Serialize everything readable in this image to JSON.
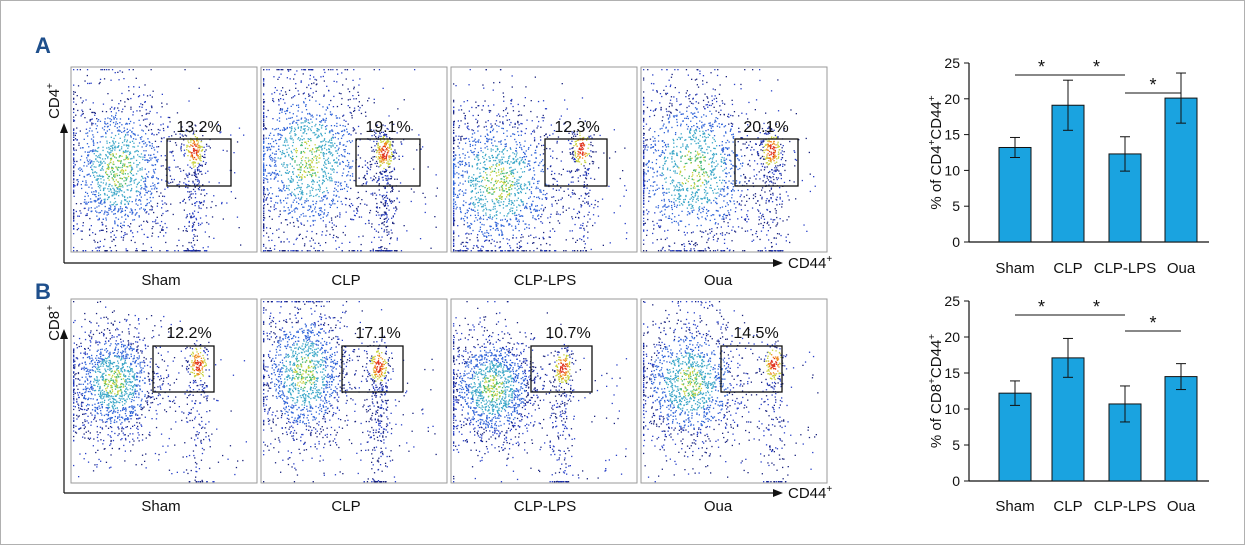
{
  "panels": [
    {
      "letter": "A",
      "y_marker": "CD4",
      "x_marker": "CD44",
      "sup": "+",
      "groups": [
        "Sham",
        "CLP",
        "CLP-LPS",
        "Oua"
      ],
      "gate_percentages": [
        "13.2%",
        "19.1%",
        "12.3%",
        "20.1%"
      ]
    },
    {
      "letter": "B",
      "y_marker": "CD8",
      "x_marker": "CD44",
      "sup": "+",
      "groups": [
        "Sham",
        "CLP",
        "CLP-LPS",
        "Oua"
      ],
      "gate_percentages": [
        "12.2%",
        "17.1%",
        "10.7%",
        "14.5%"
      ]
    }
  ],
  "chart_data": [
    {
      "type": "bar",
      "ylabel": "% of CD4+CD44+",
      "ylabel_parts": [
        "% of CD4",
        "+",
        "CD44",
        "+"
      ],
      "categories": [
        "Sham",
        "CLP",
        "CLP-LPS",
        "Oua"
      ],
      "values": [
        13.2,
        19.1,
        12.3,
        20.1
      ],
      "errors": [
        1.4,
        3.5,
        2.4,
        3.5
      ],
      "ylim": [
        0,
        25
      ],
      "yticks": [
        "0",
        "5",
        "10",
        "15",
        "20",
        "25"
      ],
      "bar_color": "#1aa3e0",
      "significance": [
        {
          "from": 0,
          "to": 1,
          "label": "*"
        },
        {
          "from": 1,
          "to": 2,
          "label": "*"
        },
        {
          "from": 2,
          "to": 3,
          "label": "*"
        }
      ]
    },
    {
      "type": "bar",
      "ylabel": "% of CD8+CD44+",
      "ylabel_parts": [
        "% of CD8",
        "+",
        "CD44",
        "+"
      ],
      "categories": [
        "Sham",
        "CLP",
        "CLP-LPS",
        "Oua"
      ],
      "values": [
        12.2,
        17.1,
        10.7,
        14.5
      ],
      "errors": [
        1.7,
        2.7,
        2.5,
        1.8
      ],
      "ylim": [
        0,
        25
      ],
      "yticks": [
        "0",
        "5",
        "10",
        "15",
        "20",
        "25"
      ],
      "bar_color": "#1aa3e0",
      "significance": [
        {
          "from": 0,
          "to": 1,
          "label": "*"
        },
        {
          "from": 1,
          "to": 2,
          "label": "*"
        },
        {
          "from": 2,
          "to": 3,
          "label": "*"
        }
      ]
    }
  ]
}
